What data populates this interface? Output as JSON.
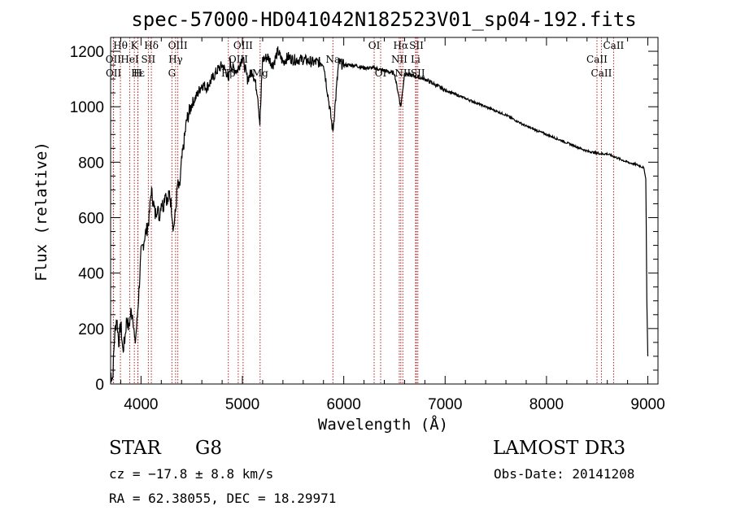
{
  "chart_data": {
    "type": "line",
    "title": "spec-57000-HD041042N182523V01_sp04-192.fits",
    "xlabel": "Wavelength (Å)",
    "ylabel": "Flux (relative)",
    "xlim": [
      3700,
      9100
    ],
    "ylim": [
      0,
      1250
    ],
    "xticks": [
      4000,
      5000,
      6000,
      7000,
      8000,
      9000
    ],
    "yticks": [
      0,
      200,
      400,
      600,
      800,
      1000,
      1200
    ],
    "grid": false,
    "series": [
      {
        "x": [
          3700,
          3720,
          3740,
          3760,
          3780,
          3800,
          3820,
          3840,
          3860,
          3880,
          3900,
          3920,
          3940,
          3960,
          3980,
          4000,
          4020,
          4040,
          4060,
          4080,
          4100,
          4120,
          4140,
          4160,
          4180,
          4200,
          4220,
          4240,
          4260,
          4280,
          4300,
          4320,
          4340,
          4360,
          4380,
          4400,
          4450,
          4500,
          4550,
          4600,
          4650,
          4700,
          4750,
          4800,
          4850,
          4861,
          4880,
          4900,
          4950,
          5000,
          5050,
          5100,
          5150,
          5172,
          5200,
          5250,
          5300,
          5350,
          5400,
          5450,
          5500,
          5600,
          5700,
          5800,
          5893,
          5950,
          6000,
          6100,
          6200,
          6300,
          6400,
          6500,
          6563,
          6600,
          6700,
          6800,
          6900,
          7000,
          7200,
          7400,
          7600,
          7800,
          8000,
          8200,
          8400,
          8542,
          8600,
          8800,
          8900,
          8960,
          8980,
          8990,
          9000
        ],
        "y": [
          40,
          20,
          180,
          240,
          150,
          220,
          120,
          160,
          240,
          200,
          260,
          250,
          140,
          220,
          340,
          470,
          500,
          540,
          560,
          600,
          700,
          660,
          610,
          640,
          600,
          660,
          640,
          700,
          650,
          690,
          640,
          560,
          620,
          720,
          700,
          800,
          950,
          1010,
          1040,
          1080,
          1070,
          1100,
          1130,
          1150,
          1120,
          1080,
          1160,
          1140,
          1130,
          1180,
          1100,
          1130,
          1050,
          940,
          1170,
          1180,
          1150,
          1200,
          1160,
          1180,
          1170,
          1170,
          1160,
          1160,
          910,
          1160,
          1150,
          1150,
          1140,
          1140,
          1130,
          1120,
          1000,
          1120,
          1110,
          1100,
          1080,
          1060,
          1030,
          1000,
          970,
          930,
          900,
          870,
          840,
          830,
          830,
          800,
          790,
          780,
          740,
          300,
          100
        ]
      }
    ],
    "line_ids": [
      {
        "label": "Hθ",
        "x": 3797,
        "row": 0
      },
      {
        "label": "OII",
        "x": 3727,
        "row": 1
      },
      {
        "label": "OII",
        "x": 3729,
        "row": 2
      },
      {
        "label": "K",
        "x": 3934,
        "row": 0
      },
      {
        "label": "HeI",
        "x": 3889,
        "row": 1
      },
      {
        "label": "Hε",
        "x": 3970,
        "row": 2
      },
      {
        "label": "H",
        "x": 3968,
        "row": 2
      },
      {
        "label": "Hδ",
        "x": 4102,
        "row": 0
      },
      {
        "label": "SII",
        "x": 4072,
        "row": 1
      },
      {
        "label": "OIII",
        "x": 4363,
        "row": 0
      },
      {
        "label": "Hγ",
        "x": 4341,
        "row": 1
      },
      {
        "label": "G",
        "x": 4305,
        "row": 2
      },
      {
        "label": "OIII",
        "x": 5007,
        "row": 0
      },
      {
        "label": "OIII",
        "x": 4959,
        "row": 1
      },
      {
        "label": "Hβ",
        "x": 4861,
        "row": 2
      },
      {
        "label": "Mg",
        "x": 5175,
        "row": 2
      },
      {
        "label": "Na",
        "x": 5893,
        "row": 1
      },
      {
        "label": "OI",
        "x": 6300,
        "row": 0
      },
      {
        "label": "OI",
        "x": 6364,
        "row": 2
      },
      {
        "label": "Hα",
        "x": 6563,
        "row": 0
      },
      {
        "label": "SII",
        "x": 6717,
        "row": 0
      },
      {
        "label": "NII",
        "x": 6548,
        "row": 1
      },
      {
        "label": "Li",
        "x": 6708,
        "row": 1
      },
      {
        "label": "NII",
        "x": 6583,
        "row": 2
      },
      {
        "label": "SII",
        "x": 6731,
        "row": 2
      },
      {
        "label": "CaII",
        "x": 8662,
        "row": 0
      },
      {
        "label": "CaII",
        "x": 8498,
        "row": 1
      },
      {
        "label": "CaII",
        "x": 8542,
        "row": 2
      }
    ],
    "colors": {
      "line": "#000000",
      "line_markers": "#b22222"
    }
  },
  "info": {
    "class_label": "STAR",
    "subclass": "G8",
    "survey": "LAMOST DR3",
    "cz": "cz = −17.8 ± 8.8 km/s",
    "obs_date": "Obs-Date: 20141208",
    "coords": "RA =  62.38055, DEC =  18.29971"
  }
}
